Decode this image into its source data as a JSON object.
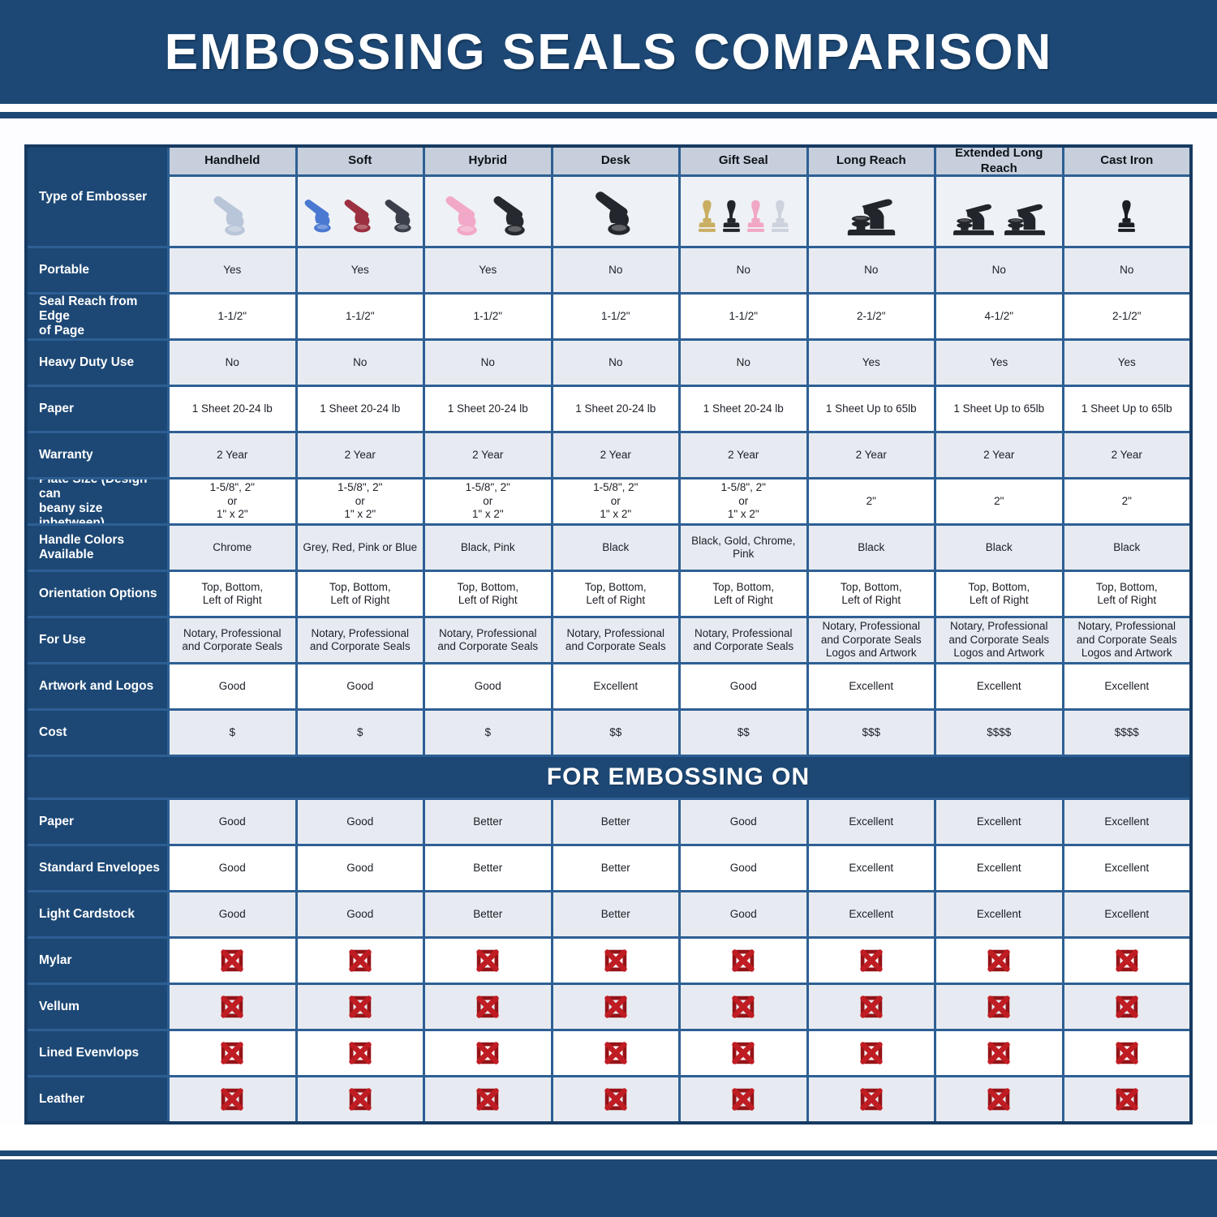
{
  "chart_data": {
    "type": "table",
    "title": "EMBOSSING SEALS COMPARISON",
    "corner_label": "Type of Embosser",
    "columns": [
      "Handheld",
      "Soft",
      "Hybrid",
      "Desk",
      "Gift Seal",
      "Long Reach",
      "Extended Long Reach",
      "Cast Iron"
    ],
    "embosser_images": [
      {
        "column": "Handheld",
        "shapes": [
          {
            "style": "hand",
            "color": "#b9c5d8"
          }
        ]
      },
      {
        "column": "Soft",
        "shapes": [
          {
            "style": "hand",
            "color": "#4a79d2"
          },
          {
            "style": "hand",
            "color": "#9c3040"
          },
          {
            "style": "hand",
            "color": "#3a3f4a"
          }
        ]
      },
      {
        "column": "Hybrid",
        "shapes": [
          {
            "style": "hand",
            "color": "#f2a8c8"
          },
          {
            "style": "hand",
            "color": "#26292f"
          }
        ]
      },
      {
        "column": "Desk",
        "shapes": [
          {
            "style": "hand",
            "color": "#23262d",
            "big": true
          }
        ]
      },
      {
        "column": "Gift Seal",
        "shapes": [
          {
            "style": "upright",
            "color": "#c9ae62"
          },
          {
            "style": "upright",
            "color": "#22252b"
          },
          {
            "style": "upright",
            "color": "#f0a6c4"
          },
          {
            "style": "upright",
            "color": "#ccd3dd"
          }
        ]
      },
      {
        "column": "Long Reach",
        "shapes": [
          {
            "style": "desk",
            "color": "#22252b"
          }
        ]
      },
      {
        "column": "Extended Long Reach",
        "shapes": [
          {
            "style": "desk",
            "color": "#22252b",
            "small": true
          },
          {
            "style": "desk",
            "color": "#22252b",
            "small": true
          }
        ]
      },
      {
        "column": "Cast Iron",
        "shapes": [
          {
            "style": "upright",
            "color": "#1b1e24"
          }
        ]
      }
    ],
    "spec_rows": [
      {
        "label": "Portable",
        "values": [
          "Yes",
          "Yes",
          "Yes",
          "No",
          "No",
          "No",
          "No",
          "No"
        ]
      },
      {
        "label": "Seal Reach from Edge\nof Page",
        "values": [
          "1-1/2\"",
          "1-1/2\"",
          "1-1/2\"",
          "1-1/2\"",
          "1-1/2\"",
          "2-1/2\"",
          "4-1/2\"",
          "2-1/2\""
        ]
      },
      {
        "label": "Heavy Duty Use",
        "values": [
          "No",
          "No",
          "No",
          "No",
          "No",
          "Yes",
          "Yes",
          "Yes"
        ]
      },
      {
        "label": "Paper",
        "values": [
          "1 Sheet 20-24 lb",
          "1 Sheet 20-24 lb",
          "1 Sheet 20-24 lb",
          "1 Sheet 20-24 lb",
          "1 Sheet 20-24 lb",
          "1 Sheet Up to 65lb",
          "1 Sheet Up to 65lb",
          "1 Sheet Up to 65lb"
        ]
      },
      {
        "label": "Warranty",
        "values": [
          "2 Year",
          "2 Year",
          "2 Year",
          "2 Year",
          "2 Year",
          "2 Year",
          "2 Year",
          "2 Year"
        ]
      },
      {
        "label": "Plate Size (Design can\nbeany size inbetween)",
        "values": [
          "1-5/8\", 2\"\nor\n1\" x 2\"",
          "1-5/8\", 2\"\nor\n1\" x 2\"",
          "1-5/8\", 2\"\nor\n1\" x 2\"",
          "1-5/8\", 2\"\nor\n1\" x 2\"",
          "1-5/8\", 2\"\nor\n1\" x 2\"",
          "2\"",
          "2\"",
          "2\""
        ]
      },
      {
        "label": "Handle Colors Available",
        "values": [
          "Chrome",
          "Grey, Red, Pink or Blue",
          "Black, Pink",
          "Black",
          "Black, Gold, Chrome, Pink",
          "Black",
          "Black",
          "Black"
        ]
      },
      {
        "label": "Orientation Options",
        "values": [
          "Top, Bottom,\nLeft of Right",
          "Top, Bottom,\nLeft of Right",
          "Top, Bottom,\nLeft of Right",
          "Top, Bottom,\nLeft of Right",
          "Top, Bottom,\nLeft of Right",
          "Top, Bottom,\nLeft of Right",
          "Top, Bottom,\nLeft of Right",
          "Top, Bottom,\nLeft of Right"
        ]
      },
      {
        "label": "For Use",
        "values": [
          "Notary, Professional\nand Corporate Seals",
          "Notary, Professional\nand Corporate Seals",
          "Notary, Professional\nand Corporate Seals",
          "Notary, Professional\nand Corporate Seals",
          "Notary, Professional\nand Corporate Seals",
          "Notary, Professional\nand Corporate Seals\nLogos and Artwork",
          "Notary, Professional\nand Corporate Seals\nLogos and Artwork",
          "Notary, Professional\nand Corporate Seals\nLogos and Artwork"
        ]
      },
      {
        "label": "Artwork and Logos",
        "values": [
          "Good",
          "Good",
          "Good",
          "Excellent",
          "Good",
          "Excellent",
          "Excellent",
          "Excellent"
        ]
      },
      {
        "label": "Cost",
        "values": [
          "$",
          "$",
          "$",
          "$$",
          "$$",
          "$$$",
          "$$$$",
          "$$$$"
        ]
      }
    ],
    "banner": "FOR EMBOSSING ON",
    "embossing_rows": [
      {
        "label": "Paper",
        "values": [
          "Good",
          "Good",
          "Better",
          "Better",
          "Good",
          "Excellent",
          "Excellent",
          "Excellent"
        ]
      },
      {
        "label": "Standard Envelopes",
        "values": [
          "Good",
          "Good",
          "Better",
          "Better",
          "Good",
          "Excellent",
          "Excellent",
          "Excellent"
        ]
      },
      {
        "label": "Light Cardstock",
        "values": [
          "Good",
          "Good",
          "Better",
          "Better",
          "Good",
          "Excellent",
          "Excellent",
          "Excellent"
        ]
      },
      {
        "label": "Mylar",
        "values": [
          "x",
          "x",
          "x",
          "x",
          "x",
          "x",
          "x",
          "x"
        ]
      },
      {
        "label": "Vellum",
        "values": [
          "x",
          "x",
          "x",
          "x",
          "x",
          "x",
          "x",
          "x"
        ]
      },
      {
        "label": "Lined Evenvlops",
        "values": [
          "x",
          "x",
          "x",
          "x",
          "x",
          "x",
          "x",
          "x"
        ]
      },
      {
        "label": "Leather",
        "values": [
          "x",
          "x",
          "x",
          "x",
          "x",
          "x",
          "x",
          "x"
        ]
      }
    ],
    "colors": {
      "navy": "#1d4875",
      "grid_line": "#2d5f94",
      "outer_border": "#173a61",
      "column_header_bg": "#c6cfdb",
      "row_alt_bg": "#e7ebf1",
      "row_white_bg": "#ffffff",
      "x_red": "#bf1d23",
      "x_dark_red": "#951317"
    },
    "icons": {
      "x_icon": "not-suitable-x-icon",
      "hand": "hand-press-icon",
      "upright": "upright-press-icon",
      "desk": "desk-press-icon"
    }
  }
}
